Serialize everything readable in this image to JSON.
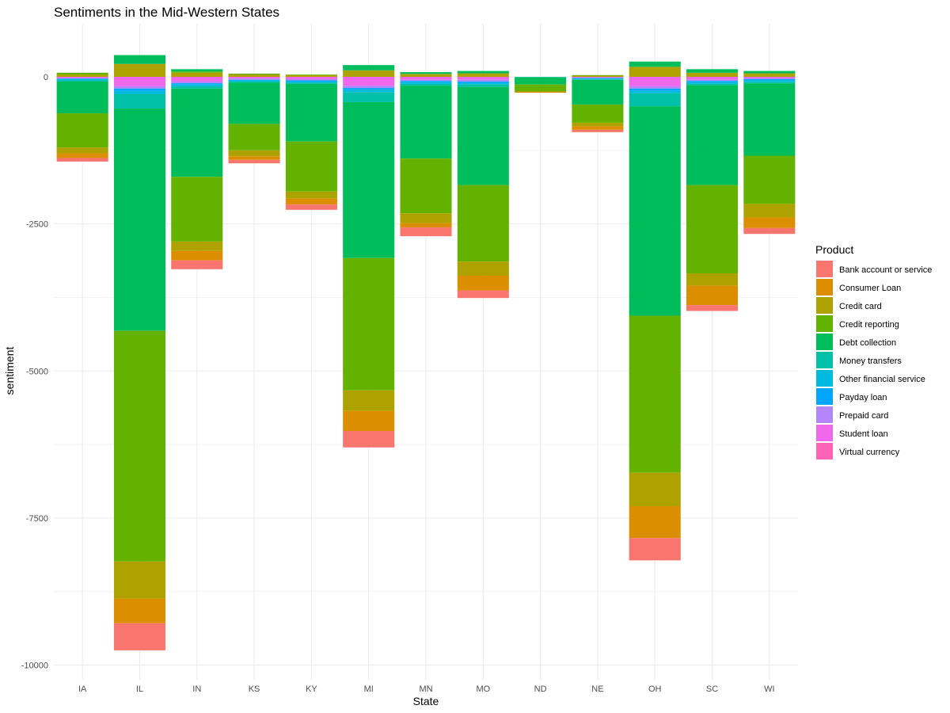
{
  "chart_data": {
    "type": "bar",
    "stacked": true,
    "title": "Sentiments in the Mid-Western States",
    "xlabel": "State",
    "ylabel": "sentiment",
    "ylim": [
      -10000,
      500
    ],
    "y_ticks": [
      0,
      -2500,
      -5000,
      -7500,
      -10000
    ],
    "y_tick_labels": [
      "0",
      "-2500",
      "-5000",
      "-7500",
      "-10000"
    ],
    "grid": true,
    "legend_position": "right",
    "legend_title": "Product",
    "categories": [
      "IA",
      "IL",
      "IN",
      "KS",
      "KY",
      "MI",
      "MN",
      "MO",
      "ND",
      "NE",
      "OH",
      "SC",
      "WI"
    ],
    "series": [
      {
        "name": "Bank account or service",
        "color": "#F8766D",
        "values": [
          -60,
          -460,
          -150,
          -60,
          -90,
          -280,
          -150,
          -130,
          0,
          -40,
          -380,
          -100,
          -100
        ]
      },
      {
        "name": "Consumer Loan",
        "color": "#DB8E00",
        "values": [
          -80,
          -420,
          -160,
          -60,
          -100,
          -340,
          -70,
          -250,
          -20,
          -60,
          -540,
          -330,
          -180
        ]
      },
      {
        "name": "Credit card",
        "color": "#AEA200",
        "pos": [
          40,
          220,
          70,
          40,
          30,
          110,
          50,
          60,
          0,
          20,
          170,
          70,
          60
        ],
        "values": [
          -100,
          -630,
          -160,
          -100,
          -120,
          -350,
          -170,
          -240,
          0,
          -60,
          -570,
          -210,
          -230
        ]
      },
      {
        "name": "Credit reporting",
        "color": "#64B200",
        "pos": [
          30,
          0,
          20,
          15,
          10,
          0,
          0,
          0,
          0,
          10,
          0,
          0,
          0
        ],
        "values": [
          -580,
          -3920,
          -1100,
          -450,
          -850,
          -2250,
          -930,
          -1300,
          -120,
          -310,
          -2670,
          -1500,
          -820
        ]
      },
      {
        "name": "Debt collection",
        "color": "#00BD5C",
        "pos": [
          0,
          150,
          40,
          0,
          0,
          90,
          30,
          40,
          0,
          0,
          90,
          60,
          40
        ],
        "values": [
          -540,
          -3780,
          -1500,
          -700,
          -980,
          -2650,
          -1240,
          -1670,
          -120,
          -420,
          -3560,
          -1700,
          -1230
        ]
      },
      {
        "name": "Money transfers",
        "color": "#00C1A7",
        "values": [
          -20,
          -250,
          -40,
          -20,
          -20,
          -170,
          -30,
          -40,
          -10,
          -10,
          -220,
          -20,
          -20
        ]
      },
      {
        "name": "Other financial service",
        "color": "#00BADE",
        "values": [
          -20,
          -50,
          -30,
          -20,
          -20,
          -40,
          -30,
          -30,
          0,
          -10,
          -40,
          -30,
          -30
        ]
      },
      {
        "name": "Payday loan",
        "color": "#00A6FF",
        "values": [
          -10,
          -40,
          -20,
          -10,
          -20,
          -30,
          -20,
          -20,
          0,
          -10,
          -40,
          -20,
          -20
        ]
      },
      {
        "name": "Prepaid card",
        "color": "#B385FF",
        "values": [
          -10,
          -40,
          -30,
          -20,
          -20,
          -40,
          -20,
          -30,
          0,
          -10,
          -40,
          -20,
          -20
        ]
      },
      {
        "name": "Student loan",
        "color": "#EF67EB",
        "values": [
          -20,
          -160,
          -80,
          -30,
          -40,
          -150,
          -50,
          -50,
          0,
          -10,
          -160,
          -50,
          -20
        ]
      },
      {
        "name": "Virtual currency",
        "color": "#FF63B6",
        "values": [
          0,
          0,
          0,
          0,
          0,
          0,
          0,
          0,
          0,
          0,
          0,
          0,
          0
        ]
      }
    ]
  }
}
